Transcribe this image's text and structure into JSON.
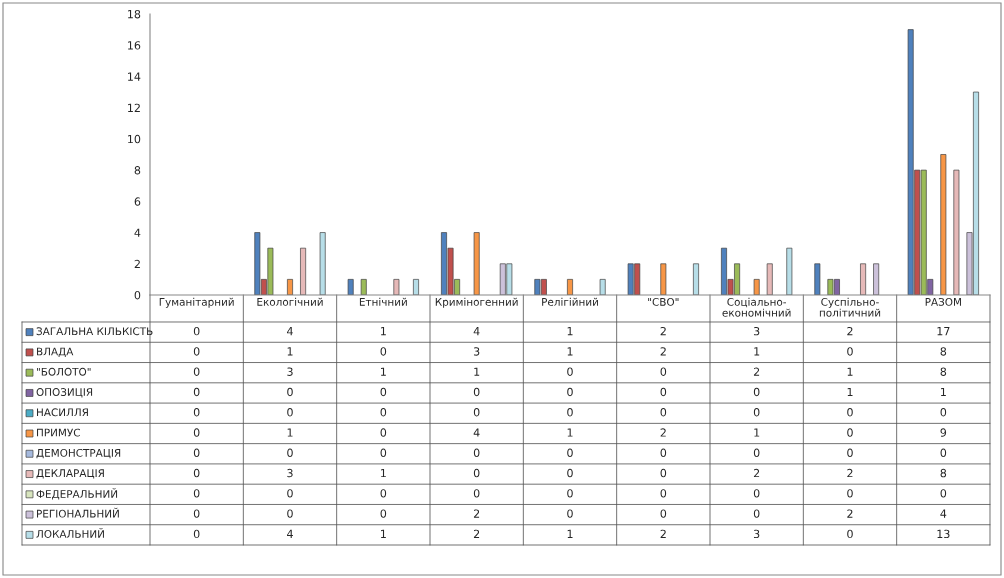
{
  "chart_data": {
    "type": "bar",
    "categories": [
      "Гуманітарний",
      "Екологічний",
      "Етнічний",
      "Криміногенний",
      "Релігійний",
      "\"СВО\"",
      "Соціально-економічний",
      "Суспільно-політичний",
      "РАЗОМ"
    ],
    "series": [
      {
        "name": "ЗАГАЛЬНА КІЛЬКІСТЬ",
        "color": "#4f81bd",
        "values": [
          0,
          4,
          1,
          4,
          1,
          2,
          3,
          2,
          17
        ]
      },
      {
        "name": "ВЛАДА",
        "color": "#c0504d",
        "values": [
          0,
          1,
          0,
          3,
          1,
          2,
          1,
          0,
          8
        ]
      },
      {
        "name": "\"БОЛОТО\"",
        "color": "#9bbb59",
        "values": [
          0,
          3,
          1,
          1,
          0,
          0,
          2,
          1,
          8
        ]
      },
      {
        "name": "ОПОЗИЦІЯ",
        "color": "#8064a2",
        "values": [
          0,
          0,
          0,
          0,
          0,
          0,
          0,
          1,
          1
        ]
      },
      {
        "name": "НАСИЛЛЯ",
        "color": "#4bacc6",
        "values": [
          0,
          0,
          0,
          0,
          0,
          0,
          0,
          0,
          0
        ]
      },
      {
        "name": "ПРИМУС",
        "color": "#f79646",
        "values": [
          0,
          1,
          0,
          4,
          1,
          2,
          1,
          0,
          9
        ]
      },
      {
        "name": "ДЕМОНСТРАЦІЯ",
        "color": "#a5b9dd",
        "values": [
          0,
          0,
          0,
          0,
          0,
          0,
          0,
          0,
          0
        ]
      },
      {
        "name": "ДЕКЛАРАЦІЯ",
        "color": "#e6b9b8",
        "values": [
          0,
          3,
          1,
          0,
          0,
          0,
          2,
          2,
          8
        ]
      },
      {
        "name": "ФЕДЕРАЛЬНИЙ",
        "color": "#d7e4bd",
        "values": [
          0,
          0,
          0,
          0,
          0,
          0,
          0,
          0,
          0
        ]
      },
      {
        "name": "РЕГІОНАЛЬНИЙ",
        "color": "#ccc1da",
        "values": [
          0,
          0,
          0,
          2,
          0,
          0,
          0,
          2,
          4
        ]
      },
      {
        "name": "ЛОКАЛЬНИЙ",
        "color": "#b7dee8",
        "values": [
          0,
          4,
          1,
          2,
          1,
          2,
          3,
          0,
          13
        ]
      }
    ],
    "ylim": [
      0,
      18
    ],
    "yticks": [
      0,
      2,
      4,
      6,
      8,
      10,
      12,
      14,
      16,
      18
    ],
    "data_labels": true,
    "legend": "bottom"
  }
}
